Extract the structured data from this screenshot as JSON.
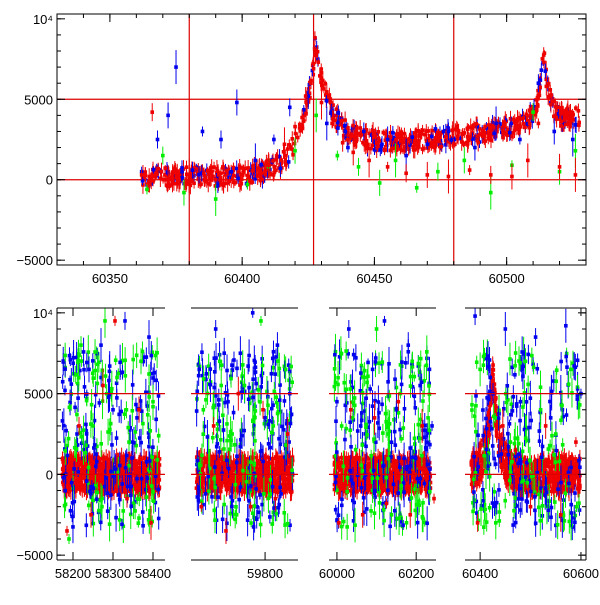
{
  "chart_data": [
    {
      "type": "scatter",
      "title": "",
      "xlabel": "",
      "ylabel": "",
      "xlim": [
        60330,
        60530
      ],
      "ylim": [
        -5300,
        10300
      ],
      "x_ticks": [
        60350,
        60400,
        60450,
        60500
      ],
      "x_tick_labels": [
        "60350",
        "60400",
        "60450",
        "60500"
      ],
      "y_ticks": [
        -5000,
        0,
        5000,
        10000
      ],
      "y_tick_labels": [
        "−5000",
        "0",
        "5000",
        "10⁴"
      ],
      "hlines": [
        0,
        5000
      ],
      "vlines": [
        60380,
        60427,
        60480
      ],
      "grid": false,
      "legend": "none",
      "series": [
        {
          "color": "#0000ee",
          "points": [
            [
              60362,
              500
            ],
            [
              60368,
              2500
            ],
            [
              60372,
              4000
            ],
            [
              60375,
              7000
            ],
            [
              60385,
              3000
            ],
            [
              60392,
              2500
            ],
            [
              60398,
              4800
            ],
            [
              60405,
              1200
            ],
            [
              60412,
              2500
            ],
            [
              60418,
              4500
            ],
            [
              60425,
              5200
            ],
            [
              60432,
              3500
            ],
            [
              60440,
              2000
            ],
            [
              60446,
              3000
            ],
            [
              60455,
              2500
            ],
            [
              60462,
              1500
            ],
            [
              60470,
              2200
            ],
            [
              60478,
              3000
            ],
            [
              60488,
              2000
            ],
            [
              60496,
              3500
            ],
            [
              60505,
              2500
            ],
            [
              60512,
              6000
            ],
            [
              60518,
              3000
            ],
            [
              60525,
              2500
            ]
          ]
        },
        {
          "color": "#00ee00",
          "points": [
            [
              60364,
              -600
            ],
            [
              60370,
              1500
            ],
            [
              60378,
              -800
            ],
            [
              60390,
              -1200
            ],
            [
              60402,
              -300
            ],
            [
              60410,
              800
            ],
            [
              60420,
              1800
            ],
            [
              60428,
              4000
            ],
            [
              60436,
              1500
            ],
            [
              60444,
              800
            ],
            [
              60452,
              -200
            ],
            [
              60458,
              1200
            ],
            [
              60466,
              -500
            ],
            [
              60474,
              500
            ],
            [
              60484,
              1200
            ],
            [
              60494,
              -800
            ],
            [
              60502,
              900
            ],
            [
              60510,
              4200
            ],
            [
              60520,
              500
            ],
            [
              60526,
              1800
            ]
          ]
        },
        {
          "color": "#ee0000",
          "points": [
            [
              60362,
              300
            ],
            [
              60366,
              4200
            ],
            [
              60372,
              100
            ],
            [
              60380,
              200
            ],
            [
              60390,
              0
            ],
            [
              60400,
              300
            ],
            [
              60410,
              900
            ],
            [
              60416,
              2200
            ],
            [
              60420,
              3300
            ],
            [
              60424,
              5200
            ],
            [
              60427,
              6900
            ],
            [
              60430,
              4800
            ],
            [
              60434,
              3500
            ],
            [
              60438,
              2300
            ],
            [
              60442,
              1700
            ],
            [
              60448,
              1200
            ],
            [
              60455,
              800
            ],
            [
              60462,
              400
            ],
            [
              60470,
              300
            ],
            [
              60478,
              200
            ],
            [
              60486,
              600
            ],
            [
              60494,
              300
            ],
            [
              60502,
              200
            ],
            [
              60508,
              1200
            ],
            [
              60512,
              3500
            ],
            [
              60515,
              5800
            ],
            [
              60520,
              800
            ],
            [
              60526,
              300
            ]
          ]
        }
      ]
    },
    {
      "type": "scatter",
      "title": "",
      "xlabel": "",
      "ylabel": "",
      "ylim": [
        -5300,
        10300
      ],
      "x_ticks": [
        58200,
        58300,
        58400,
        59800,
        60000,
        60200,
        60400,
        60600
      ],
      "x_tick_labels": [
        "58200",
        "58300",
        "58400",
        "59800",
        "60000",
        "60200",
        "60400",
        "60600"
      ],
      "y_ticks": [
        -5000,
        0,
        5000,
        10000
      ],
      "y_tick_labels": [
        "−5000",
        "0",
        "5000",
        "10⁴"
      ],
      "hlines": [
        0,
        5000
      ],
      "grid": false,
      "legend": "none",
      "segments": [
        {
          "xlim": [
            58160,
            58430
          ]
        },
        {
          "xlim": [
            59620,
            59880
          ]
        },
        {
          "xlim": [
            59980,
            60250
          ]
        },
        {
          "xlim": [
            60370,
            60610
          ]
        }
      ],
      "series": [
        {
          "color": "#0000ee",
          "points": [
            [
              58180,
              5200
            ],
            [
              58210,
              2500
            ],
            [
              58240,
              6500
            ],
            [
              58270,
              8000
            ],
            [
              58300,
              4000
            ],
            [
              58330,
              9500
            ],
            [
              58360,
              3500
            ],
            [
              58390,
              8500
            ],
            [
              59640,
              6500
            ],
            [
              59680,
              9000
            ],
            [
              59710,
              4500
            ],
            [
              59740,
              7500
            ],
            [
              59770,
              10000
            ],
            [
              59800,
              3500
            ],
            [
              59830,
              8000
            ],
            [
              59860,
              5000
            ],
            [
              60000,
              4500
            ],
            [
              60030,
              9000
            ],
            [
              60060,
              3000
            ],
            [
              60090,
              6500
            ],
            [
              60120,
              9500
            ],
            [
              60150,
              4000
            ],
            [
              60180,
              8000
            ],
            [
              60210,
              5500
            ],
            [
              60240,
              3000
            ],
            [
              60390,
              9800
            ],
            [
              60420,
              6000
            ],
            [
              60450,
              9000
            ],
            [
              60480,
              4500
            ],
            [
              60510,
              8500
            ],
            [
              60540,
              3500
            ],
            [
              60570,
              9200
            ],
            [
              60600,
              5000
            ]
          ]
        },
        {
          "color": "#00ee00",
          "points": [
            [
              58190,
              -4000
            ],
            [
              58220,
              8000
            ],
            [
              58250,
              3000
            ],
            [
              58280,
              9500
            ],
            [
              58310,
              6000
            ],
            [
              58340,
              2000
            ],
            [
              58370,
              7000
            ],
            [
              58400,
              4500
            ],
            [
              59650,
              4000
            ],
            [
              59690,
              7000
            ],
            [
              59720,
              2500
            ],
            [
              59750,
              5500
            ],
            [
              59790,
              9500
            ],
            [
              59820,
              3000
            ],
            [
              59850,
              6500
            ],
            [
              60010,
              7500
            ],
            [
              60040,
              3500
            ],
            [
              60070,
              6000
            ],
            [
              60100,
              9000
            ],
            [
              60130,
              2500
            ],
            [
              60160,
              5000
            ],
            [
              60190,
              7000
            ],
            [
              60230,
              3500
            ],
            [
              60400,
              6500
            ],
            [
              60430,
              3500
            ],
            [
              60460,
              2000
            ],
            [
              60490,
              7000
            ],
            [
              60520,
              4000
            ],
            [
              60550,
              2500
            ],
            [
              60580,
              6500
            ]
          ]
        },
        {
          "color": "#ee0000",
          "points": [
            [
              58185,
              -3500
            ],
            [
              58215,
              3000
            ],
            [
              58245,
              -2500
            ],
            [
              58275,
              5500
            ],
            [
              58305,
              9500
            ],
            [
              58335,
              -1500
            ],
            [
              58365,
              4000
            ],
            [
              58395,
              -3000
            ],
            [
              59645,
              -2000
            ],
            [
              59675,
              3000
            ],
            [
              59705,
              -3500
            ],
            [
              59735,
              5000
            ],
            [
              59765,
              -2000
            ],
            [
              59795,
              4000
            ],
            [
              59825,
              -1500
            ],
            [
              59855,
              2500
            ],
            [
              60005,
              -3000
            ],
            [
              60035,
              4000
            ],
            [
              60065,
              -2500
            ],
            [
              60095,
              3500
            ],
            [
              60125,
              -1800
            ],
            [
              60155,
              4500
            ],
            [
              60185,
              -2500
            ],
            [
              60215,
              3000
            ],
            [
              60245,
              -1500
            ],
            [
              60395,
              -3000
            ],
            [
              60425,
              6500
            ],
            [
              60445,
              3000
            ],
            [
              60470,
              1500
            ],
            [
              60500,
              -2000
            ],
            [
              60530,
              3000
            ],
            [
              60560,
              -2500
            ],
            [
              60590,
              2000
            ]
          ]
        }
      ]
    }
  ]
}
